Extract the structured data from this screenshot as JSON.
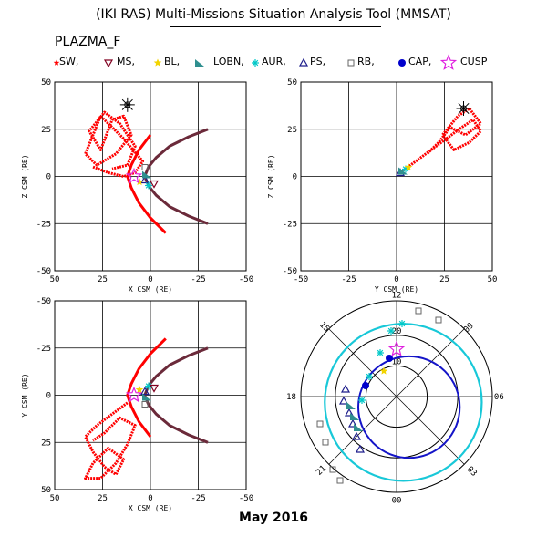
{
  "header": {
    "title": "(IKI RAS) Multi-Missions Situation Analysis Tool (MMSAT)",
    "satellite": "PLAZMA_F"
  },
  "footer": {
    "date": "May 2016"
  },
  "legend": [
    {
      "label": "SW,",
      "symbol": "star-small",
      "color": "#ff0000"
    },
    {
      "label": "MS,",
      "symbol": "triangle-down",
      "color": "#800020"
    },
    {
      "label": "BL,",
      "symbol": "star",
      "color": "#f2d400"
    },
    {
      "label": "LOBN,",
      "symbol": "triangle-filled",
      "color": "#2f8f8f"
    },
    {
      "label": "AUR,",
      "symbol": "asterisk",
      "color": "#00c8c8"
    },
    {
      "label": "PS,",
      "symbol": "triangle-up",
      "color": "#1e1e8c"
    },
    {
      "label": "RB,",
      "symbol": "square",
      "color": "#666666"
    },
    {
      "label": "CAP,",
      "symbol": "dot",
      "color": "#0000cc"
    },
    {
      "label": "CUSP",
      "symbol": "star-big",
      "color": "#e020e0"
    }
  ],
  "colors": {
    "solar_wind": "#ff0000",
    "magnetopause": "#6b2a3a",
    "oval": "#18c8d8",
    "cap": "#1414c8"
  },
  "chart_data": [
    {
      "type": "line",
      "panel": "xz",
      "xlabel": "X CSM (RE)",
      "ylabel": "Z CSM (RE)",
      "xlim": [
        50,
        -50
      ],
      "ylim": [
        -50,
        50
      ],
      "xticks": [
        "50",
        "25",
        "0",
        "-25",
        "-50"
      ],
      "yticks": [
        "-50",
        "-25",
        "0",
        "25",
        "50"
      ],
      "grid": true,
      "series": [
        {
          "kind": "magnetopause",
          "points": [
            [
              -30,
              25
            ],
            [
              -20,
              21
            ],
            [
              -10,
              16
            ],
            [
              -3,
              10
            ],
            [
              1,
              5
            ],
            [
              3,
              0
            ],
            [
              1,
              -5
            ],
            [
              -3,
              -10
            ],
            [
              -10,
              -16
            ],
            [
              -20,
              -21
            ],
            [
              -30,
              -25
            ]
          ]
        },
        {
          "kind": "bow-shock",
          "points": [
            [
              -8,
              -30
            ],
            [
              0,
              -22
            ],
            [
              6,
              -14
            ],
            [
              10,
              -6
            ],
            [
              12,
              0
            ],
            [
              10,
              6
            ],
            [
              6,
              14
            ],
            [
              0,
              22
            ]
          ]
        },
        {
          "kind": "solar-wind-orbits",
          "points": [
            [
              30,
              5
            ],
            [
              22,
              2
            ],
            [
              14,
              0
            ],
            [
              8,
              2
            ],
            [
              4,
              8
            ],
            [
              14,
              20
            ],
            [
              22,
              28
            ],
            [
              26,
              32
            ],
            [
              30,
              22
            ],
            [
              34,
              12
            ],
            [
              28,
              6
            ],
            [
              18,
              12
            ],
            [
              10,
              22
            ],
            [
              14,
              32
            ],
            [
              20,
              30
            ],
            [
              26,
              14
            ],
            [
              32,
              24
            ],
            [
              24,
              34
            ],
            [
              16,
              28
            ],
            [
              8,
              16
            ],
            [
              12,
              6
            ],
            [
              20,
              4
            ]
          ]
        }
      ],
      "markers": [
        {
          "kind": "sun-marker",
          "x": 12,
          "y": 38
        }
      ]
    },
    {
      "type": "line",
      "panel": "yz",
      "xlabel": "Y CSM (RE)",
      "ylabel": "Z CSM (RE)",
      "xlim": [
        -50,
        50
      ],
      "ylim": [
        -50,
        50
      ],
      "xticks": [
        "-50",
        "-25",
        "0",
        "25",
        "50"
      ],
      "yticks": [
        "-50",
        "-25",
        "0",
        "25",
        "50"
      ],
      "grid": true,
      "series": [
        {
          "kind": "solar-wind-orbits",
          "points": [
            [
              2,
              2
            ],
            [
              10,
              8
            ],
            [
              18,
              14
            ],
            [
              26,
              20
            ],
            [
              34,
              26
            ],
            [
              40,
              30
            ],
            [
              44,
              24
            ],
            [
              38,
              18
            ],
            [
              30,
              14
            ],
            [
              24,
              22
            ],
            [
              32,
              32
            ],
            [
              38,
              36
            ],
            [
              44,
              28
            ],
            [
              36,
              22
            ],
            [
              28,
              26
            ],
            [
              22,
              18
            ],
            [
              16,
              12
            ]
          ]
        }
      ],
      "markers": [
        {
          "kind": "sun-marker",
          "x": 35,
          "y": 36
        }
      ]
    },
    {
      "type": "line",
      "panel": "xy",
      "xlabel": "X CSM (RE)",
      "ylabel": "Y CSM (RE)",
      "xlim": [
        50,
        -50
      ],
      "ylim": [
        -50,
        50
      ],
      "xticks": [
        "50",
        "25",
        "0",
        "-25",
        "-50"
      ],
      "yticks": [
        "-50",
        "-25",
        "0",
        "25",
        "50"
      ],
      "grid": true,
      "series": [
        {
          "kind": "magnetopause",
          "points": [
            [
              -30,
              -25
            ],
            [
              -20,
              -21
            ],
            [
              -10,
              -16
            ],
            [
              -3,
              -10
            ],
            [
              1,
              -5
            ],
            [
              3,
              0
            ],
            [
              1,
              5
            ],
            [
              -3,
              10
            ],
            [
              -10,
              16
            ],
            [
              -20,
              21
            ],
            [
              -30,
              25
            ]
          ]
        },
        {
          "kind": "bow-shock",
          "points": [
            [
              -8,
              -30
            ],
            [
              0,
              -22
            ],
            [
              6,
              -14
            ],
            [
              10,
              -6
            ],
            [
              12,
              0
            ],
            [
              10,
              6
            ],
            [
              6,
              14
            ],
            [
              0,
              22
            ]
          ]
        },
        {
          "kind": "solar-wind-orbits",
          "points": [
            [
              12,
              4
            ],
            [
              20,
              10
            ],
            [
              28,
              16
            ],
            [
              34,
              22
            ],
            [
              30,
              30
            ],
            [
              24,
              38
            ],
            [
              18,
              42
            ],
            [
              14,
              34
            ],
            [
              22,
              28
            ],
            [
              30,
              36
            ],
            [
              34,
              44
            ],
            [
              26,
              44
            ],
            [
              18,
              36
            ],
            [
              12,
              26
            ],
            [
              8,
              16
            ],
            [
              16,
              12
            ],
            [
              24,
              20
            ],
            [
              30,
              24
            ]
          ]
        }
      ]
    },
    {
      "type": "scatter",
      "panel": "polar",
      "xlabel": "",
      "ylabel": "",
      "angular_ticks": [
        "12",
        "09",
        "06",
        "03",
        "00",
        "21",
        "18",
        "15"
      ],
      "radial_ticks": [
        "10",
        "20"
      ],
      "grid": true,
      "series": [
        {
          "kind": "auroral-oval",
          "shape": "circle",
          "center_offset": [
            0.07,
            0.06
          ],
          "radius": 0.82
        },
        {
          "kind": "cap-boundary",
          "shape": "circle",
          "center_offset": [
            0.13,
            0.11
          ],
          "radius": 0.53
        }
      ]
    }
  ]
}
